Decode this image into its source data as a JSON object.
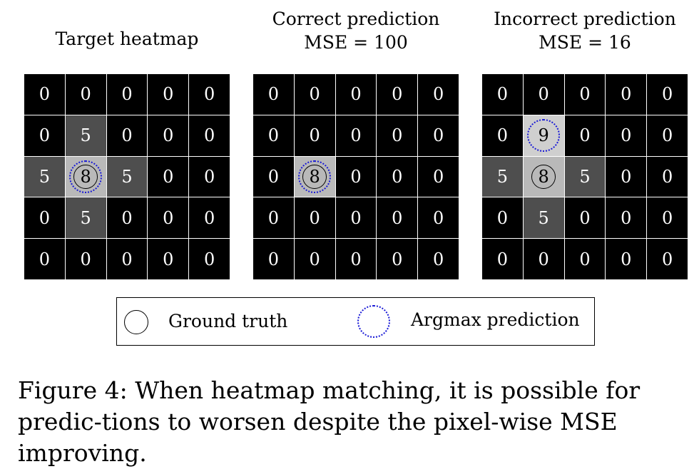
{
  "panels": [
    {
      "title": "Target heatmap",
      "subtitle": "",
      "gt_cell": [
        2,
        1
      ],
      "pred_cell": [
        2,
        1
      ],
      "values": [
        [
          0,
          0,
          0,
          0,
          0
        ],
        [
          0,
          5,
          0,
          0,
          0
        ],
        [
          5,
          8,
          5,
          0,
          0
        ],
        [
          0,
          5,
          0,
          0,
          0
        ],
        [
          0,
          0,
          0,
          0,
          0
        ]
      ]
    },
    {
      "title": "Correct prediction",
      "subtitle": "MSE = 100",
      "gt_cell": [
        2,
        1
      ],
      "pred_cell": [
        2,
        1
      ],
      "values": [
        [
          0,
          0,
          0,
          0,
          0
        ],
        [
          0,
          0,
          0,
          0,
          0
        ],
        [
          0,
          8,
          0,
          0,
          0
        ],
        [
          0,
          0,
          0,
          0,
          0
        ],
        [
          0,
          0,
          0,
          0,
          0
        ]
      ]
    },
    {
      "title": "Incorrect prediction",
      "subtitle": "MSE = 16",
      "gt_cell": [
        2,
        1
      ],
      "pred_cell": [
        1,
        1
      ],
      "values": [
        [
          0,
          0,
          0,
          0,
          0
        ],
        [
          0,
          9,
          0,
          0,
          0
        ],
        [
          5,
          8,
          5,
          0,
          0
        ],
        [
          0,
          5,
          0,
          0,
          0
        ],
        [
          0,
          0,
          0,
          0,
          0
        ]
      ]
    }
  ],
  "value_colors": {
    "0": "#000000",
    "5": "#4e4e4e",
    "8": "#b9b9b9",
    "9": "#cfcfcf"
  },
  "colors": {
    "ground_truth_ring": "#000000",
    "argmax_ring": "#1a1ad6"
  },
  "legend": {
    "ground_truth_label": "Ground truth",
    "argmax_label": "Argmax prediction"
  },
  "caption": "Figure 4: When heatmap matching, it is possible for predic-tions to worsen despite the pixel-wise MSE improving."
}
